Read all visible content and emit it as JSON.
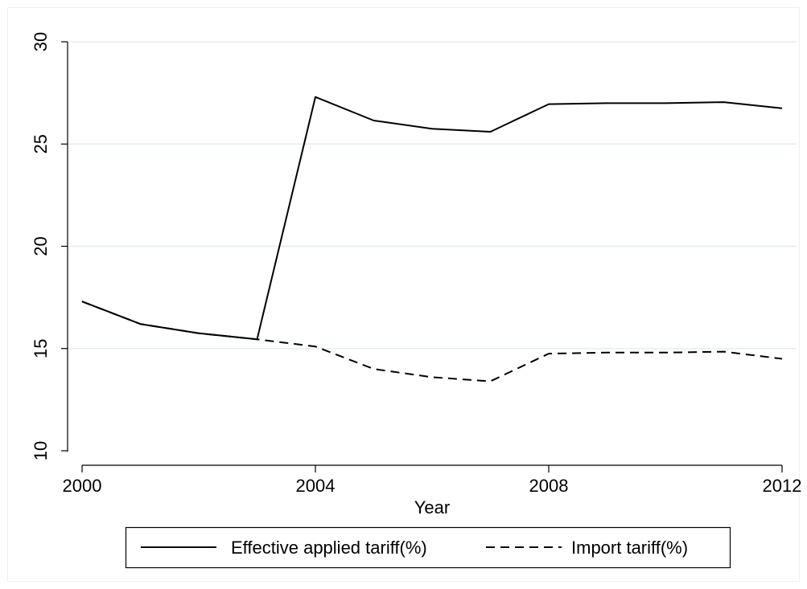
{
  "chart_data": {
    "type": "line",
    "title": "",
    "xlabel": "Year",
    "ylabel": "",
    "xlim": [
      2000,
      2012
    ],
    "ylim": [
      10,
      30
    ],
    "xticks": [
      "2000",
      "2004",
      "2008",
      "2012"
    ],
    "yticks": [
      "10",
      "15",
      "20",
      "25",
      "30"
    ],
    "grid": "horizontal",
    "legend_position": "bottom",
    "x": [
      2000,
      2001,
      2002,
      2003,
      2004,
      2005,
      2006,
      2007,
      2008,
      2009,
      2010,
      2011,
      2012
    ],
    "series": [
      {
        "name": "Effective applied tariff(%)",
        "style": "solid",
        "color": "#000000",
        "values": [
          17.3,
          16.2,
          15.75,
          15.45,
          27.3,
          26.15,
          25.75,
          25.6,
          26.95,
          27.0,
          27.0,
          27.05,
          26.75
        ]
      },
      {
        "name": "Import tariff(%)",
        "style": "dashed",
        "color": "#000000",
        "values": [
          17.3,
          16.2,
          15.75,
          15.45,
          15.1,
          14.0,
          13.6,
          13.4,
          14.75,
          14.8,
          14.8,
          14.85,
          14.5
        ]
      }
    ]
  }
}
